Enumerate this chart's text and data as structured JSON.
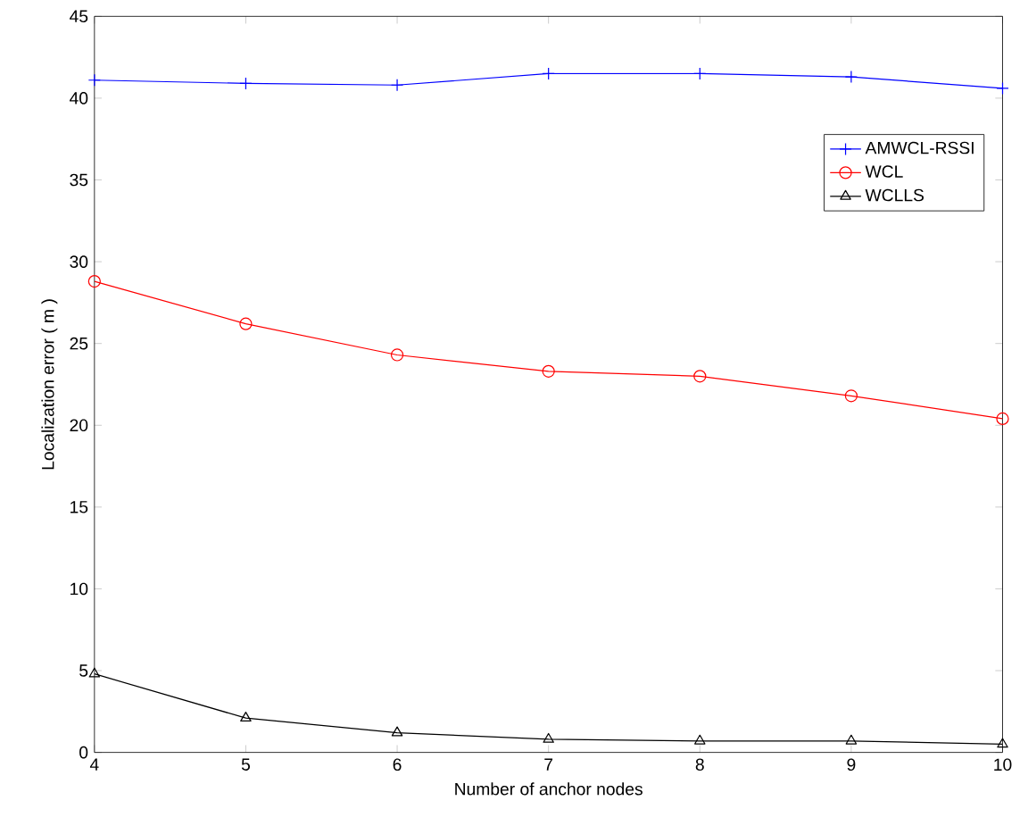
{
  "chart_data": {
    "type": "line",
    "xlabel": "Number of anchor nodes",
    "ylabel": "Localization error ( m )",
    "x": [
      4,
      5,
      6,
      7,
      8,
      9,
      10
    ],
    "series": [
      {
        "name": "AMWCL-RSSI",
        "color": "#0000ff",
        "marker": "cross",
        "values": [
          41.1,
          40.9,
          40.8,
          41.5,
          41.5,
          41.3,
          40.6
        ]
      },
      {
        "name": "WCL",
        "color": "#ff0000",
        "marker": "circle",
        "values": [
          28.8,
          26.2,
          24.3,
          23.3,
          23.0,
          21.8,
          20.4
        ]
      },
      {
        "name": "WCLLS",
        "color": "#000000",
        "marker": "triangle",
        "values": [
          4.8,
          2.1,
          1.2,
          0.8,
          0.7,
          0.7,
          0.5
        ]
      }
    ],
    "xlim": [
      4,
      10
    ],
    "xticks": [
      4,
      5,
      6,
      7,
      8,
      9,
      10
    ],
    "ylim": [
      0,
      45
    ],
    "yticks": [
      0,
      5,
      10,
      15,
      20,
      25,
      30,
      35,
      40,
      45
    ],
    "legend": "top right",
    "grid": false
  }
}
